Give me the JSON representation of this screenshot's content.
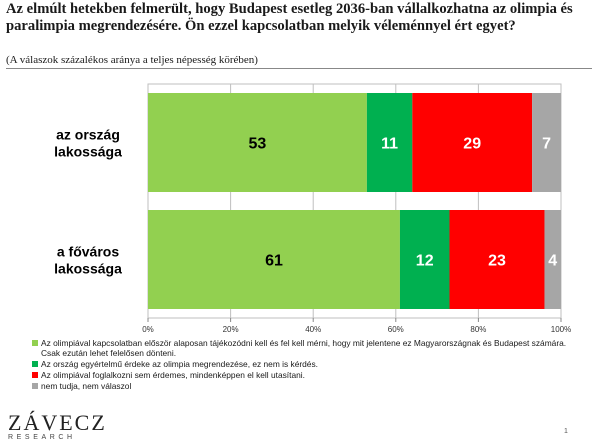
{
  "title": "Az elmúlt hetekben felmerült, hogy Budapest esetleg 2036-ban vállalkozhatna az olimpia és paralimpia megrendezésére. Ön ezzel kapcsolatban melyik véleménnyel ért egyet?",
  "subtitle": "(A válaszok százalékos aránya a teljes népesség körében)",
  "chart_data": {
    "type": "bar",
    "orientation": "horizontal",
    "stacked": true,
    "categories": [
      "az ország lakossága",
      "a főváros lakossága"
    ],
    "series": [
      {
        "name": "Az olimpiával kapcsolatban először alaposan tájékozódni kell és fel kell mérni, hogy mit jelentene ez Magyarországnak és Budapest számára. Csak ezután lehet felelősen dönteni.",
        "color": "#92d050",
        "values": [
          53,
          61
        ]
      },
      {
        "name": "Az ország egyértelmű érdeke az olimpia megrendezése, ez nem is kérdés.",
        "color": "#00b050",
        "values": [
          11,
          12
        ]
      },
      {
        "name": "Az olimpiával foglalkozni sem érdemes, mindenképpen el kell utasítani.",
        "color": "#ff0000",
        "values": [
          29,
          23
        ]
      },
      {
        "name": "nem tudja, nem válaszol",
        "color": "#a6a6a6",
        "values": [
          7,
          4
        ]
      }
    ],
    "xlim": [
      0,
      100
    ],
    "xticks": [
      "0%",
      "20%",
      "40%",
      "60%",
      "80%",
      "100%"
    ],
    "grid": true,
    "legend_position": "bottom"
  },
  "logo": {
    "main": "ZÁVECZ",
    "sub": "RESEARCH"
  },
  "page_number": "1"
}
